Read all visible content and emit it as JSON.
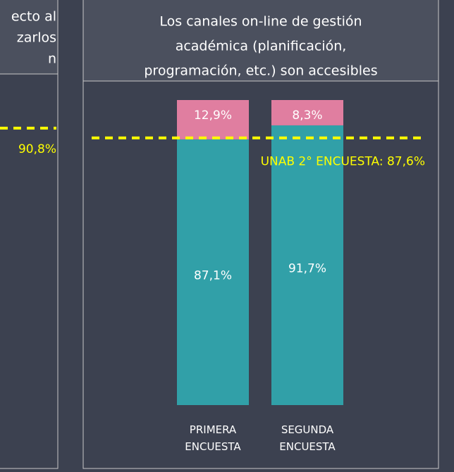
{
  "chart_data": [
    {
      "type": "bar",
      "title_lines": [
        "ecto al",
        "zarlos",
        "n"
      ],
      "ylim": [
        0,
        100
      ],
      "reference": {
        "value": 90.8,
        "label": "90,8%",
        "color": "#ffff00"
      }
    },
    {
      "type": "bar",
      "title_lines": [
        "Los canales on-line de gestión",
        "académica (planificación,",
        "programación, etc.) son accesibles"
      ],
      "categories": [
        "PRIMERA ENCUESTA",
        "SEGUNDA ENCUESTA"
      ],
      "series": [
        {
          "color": "#31a0a8",
          "values": [
            87.1,
            91.7
          ],
          "value_labels": [
            "87,1%",
            "91,7%"
          ]
        },
        {
          "color": "#e07ea0",
          "values": [
            12.9,
            8.3
          ],
          "value_labels": [
            "12,9%",
            "8,3%"
          ]
        }
      ],
      "ylim": [
        0,
        100
      ],
      "reference": {
        "value": 87.6,
        "label": "UNAB 2° ENCUESTA: 87,6%",
        "color": "#ffff00"
      }
    }
  ]
}
